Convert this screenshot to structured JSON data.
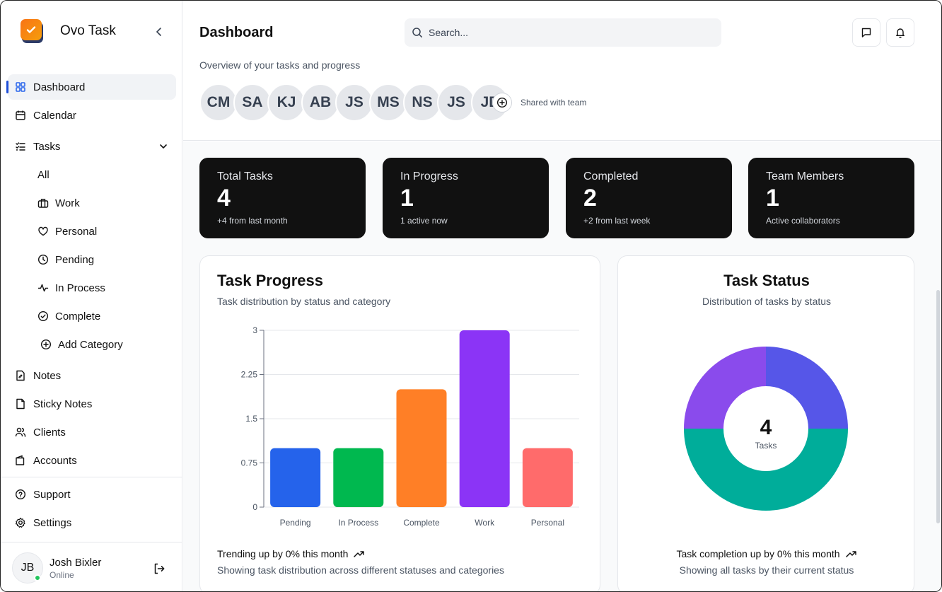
{
  "app": {
    "name": "Ovo Task"
  },
  "sidebar": {
    "items": [
      {
        "label": "Dashboard"
      },
      {
        "label": "Calendar"
      },
      {
        "label": "Tasks"
      }
    ],
    "task_sub": [
      {
        "label": "All"
      },
      {
        "label": "Work"
      },
      {
        "label": "Personal"
      },
      {
        "label": "Pending"
      },
      {
        "label": "In Process"
      },
      {
        "label": "Complete"
      }
    ],
    "add_category": "Add Category",
    "more": [
      {
        "label": "Notes"
      },
      {
        "label": "Sticky Notes"
      },
      {
        "label": "Clients"
      },
      {
        "label": "Accounts"
      }
    ],
    "bottom": [
      {
        "label": "Support"
      },
      {
        "label": "Settings"
      }
    ],
    "user": {
      "initials": "JB",
      "name": "Josh Bixler",
      "status": "Online"
    }
  },
  "header": {
    "title": "Dashboard",
    "subtitle": "Overview of your tasks and progress",
    "search_placeholder": "Search...",
    "team": [
      "CM",
      "SA",
      "KJ",
      "AB",
      "JS",
      "MS",
      "NS",
      "JS",
      "JD"
    ],
    "shared_label": "Shared with team"
  },
  "stats": [
    {
      "label": "Total Tasks",
      "value": "4",
      "sub": "+4 from last month"
    },
    {
      "label": "In Progress",
      "value": "1",
      "sub": "1 active now"
    },
    {
      "label": "Completed",
      "value": "2",
      "sub": "+2 from last week"
    },
    {
      "label": "Team Members",
      "value": "1",
      "sub": "Active collaborators"
    }
  ],
  "progress_card": {
    "title": "Task Progress",
    "subtitle": "Task distribution by status and category",
    "trend": "Trending up by 0% this month",
    "footnote": "Showing task distribution across different statuses and categories"
  },
  "status_card": {
    "title": "Task Status",
    "subtitle": "Distribution of tasks by status",
    "center_value": "4",
    "center_label": "Tasks",
    "trend": "Task completion up by 0% this month",
    "footnote": "Showing all tasks by their current status"
  },
  "chart_data": [
    {
      "type": "bar",
      "categories": [
        "Pending",
        "In Process",
        "Complete",
        "Work",
        "Personal"
      ],
      "values": [
        1,
        1,
        2,
        3,
        1
      ],
      "colors": [
        "#2563eb",
        "#00b84f",
        "#ff7f26",
        "#8b34f6",
        "#ff6b6b"
      ],
      "yticks": [
        "0",
        "0.75",
        "1.5",
        "2.25",
        "3"
      ],
      "ylim": [
        0,
        3
      ],
      "title": "",
      "xlabel": "",
      "ylabel": "",
      "grid": true
    },
    {
      "type": "pie",
      "donut": true,
      "slices": [
        {
          "value": 1,
          "color": "#5656e8"
        },
        {
          "value": 2,
          "color": "#00ad9a"
        },
        {
          "value": 1,
          "color": "#8a4bec"
        }
      ]
    }
  ]
}
